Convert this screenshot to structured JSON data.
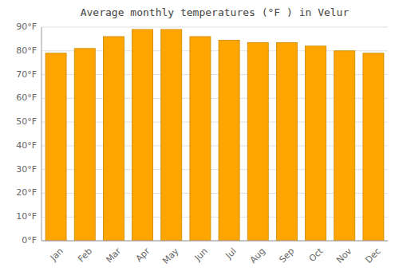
{
  "chart_data": {
    "type": "bar",
    "title": "Average monthly temperatures (°F ) in Velur",
    "categories": [
      "Jan",
      "Feb",
      "Mar",
      "Apr",
      "May",
      "Jun",
      "Jul",
      "Aug",
      "Sep",
      "Oct",
      "Nov",
      "Dec"
    ],
    "values": [
      79,
      81,
      86,
      89,
      89,
      86,
      84.5,
      83.5,
      83.5,
      82,
      80,
      79
    ],
    "color": "#FFA500",
    "ylim": [
      0,
      90
    ],
    "yticks": [
      {
        "value": 0,
        "label": "0°F"
      },
      {
        "value": 10,
        "label": "10°F"
      },
      {
        "value": 20,
        "label": "20°F"
      },
      {
        "value": 30,
        "label": "30°F"
      },
      {
        "value": 40,
        "label": "40°F"
      },
      {
        "value": 50,
        "label": "50°F"
      },
      {
        "value": 60,
        "label": "60°F"
      },
      {
        "value": 70,
        "label": "70°F"
      },
      {
        "value": 80,
        "label": "80°F"
      },
      {
        "value": 90,
        "label": "90°F"
      }
    ],
    "grid": true
  }
}
